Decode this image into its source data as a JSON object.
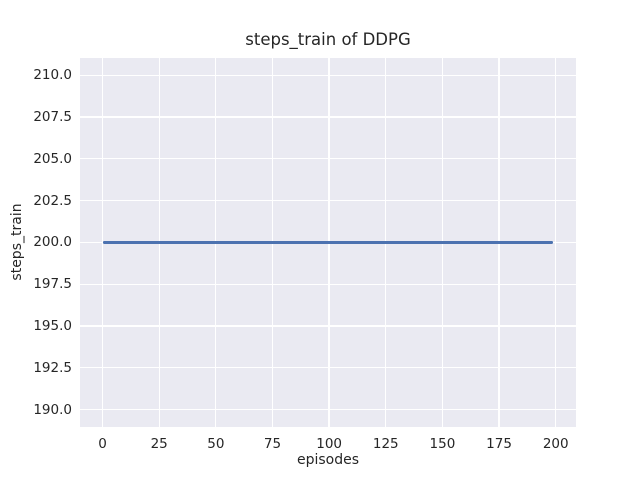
{
  "chart_data": {
    "type": "line",
    "title": "steps_train of DDPG",
    "xlabel": "episodes",
    "ylabel": "steps_train",
    "xlim": [
      -9.95,
      208.95
    ],
    "ylim": [
      188.95,
      211.05
    ],
    "grid": true,
    "legend_position": "none",
    "xticks": {
      "values": [
        0,
        25,
        50,
        75,
        100,
        125,
        150,
        175,
        200
      ],
      "labels": [
        "0",
        "25",
        "50",
        "75",
        "100",
        "125",
        "150",
        "175",
        "200"
      ]
    },
    "yticks": {
      "values": [
        190.0,
        192.5,
        195.0,
        197.5,
        200.0,
        202.5,
        205.0,
        207.5,
        210.0
      ],
      "labels": [
        "190.0",
        "192.5",
        "195.0",
        "197.5",
        "200.0",
        "202.5",
        "205.0",
        "207.5",
        "210.0"
      ]
    },
    "series": [
      {
        "name": "steps_train",
        "color": "#4C72B0",
        "x": [
          0,
          199
        ],
        "y": [
          200,
          200
        ]
      }
    ],
    "colors": {
      "figure_background": "#ffffff",
      "axes_background": "#EAEAF2",
      "grid": "#ffffff",
      "text": "#262626"
    }
  }
}
